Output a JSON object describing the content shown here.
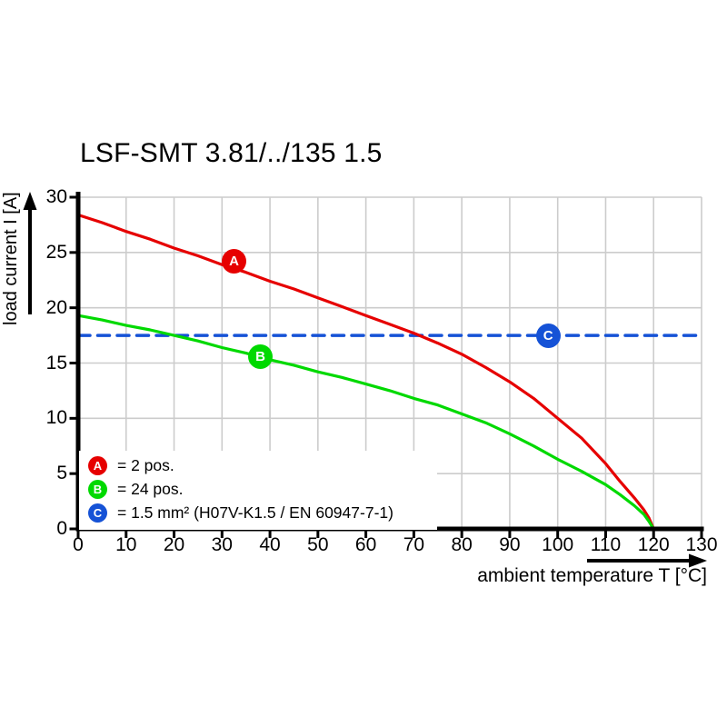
{
  "title": "LSF-SMT 3.81/../135 1.5",
  "axes": {
    "x_label": "ambient temperature T [°C]",
    "y_label": "load current I [A]",
    "x_ticks": [
      0,
      10,
      20,
      30,
      40,
      50,
      60,
      70,
      80,
      90,
      100,
      110,
      120,
      130
    ],
    "y_ticks": [
      0,
      5,
      10,
      15,
      20,
      25,
      30
    ]
  },
  "legend": {
    "items": [
      {
        "letter": "A",
        "color": "#e60000",
        "text": "= 2 pos."
      },
      {
        "letter": "B",
        "color": "#00d900",
        "text": "= 24 pos."
      },
      {
        "letter": "C",
        "color": "#1552d6",
        "text": "= 1.5 mm² (H07V-K1.5 / EN 60947-7-1)"
      }
    ]
  },
  "colors": {
    "curve_a_red": "#e60000",
    "curve_b_green": "#00d900",
    "limit_c_blue": "#1552d6",
    "grid": "#cccccc",
    "axis": "#000000",
    "background": "#ffffff"
  },
  "chart_data": {
    "type": "line",
    "title": "LSF-SMT 3.81/../135 1.5",
    "xlabel": "ambient temperature T [°C]",
    "ylabel": "load current I [A]",
    "xlim": [
      0,
      130
    ],
    "ylim": [
      0,
      30
    ],
    "x_tick_step": 10,
    "y_tick_step": 5,
    "grid": true,
    "legend_position": "bottom-left-inside",
    "series": [
      {
        "name": "A = 2 pos.",
        "color": "#e60000",
        "style": "solid",
        "points": [
          [
            0,
            28.4
          ],
          [
            5,
            27.7
          ],
          [
            10,
            26.9
          ],
          [
            15,
            26.2
          ],
          [
            20,
            25.4
          ],
          [
            25,
            24.7
          ],
          [
            30,
            23.9
          ],
          [
            35,
            23.2
          ],
          [
            40,
            22.4
          ],
          [
            45,
            21.7
          ],
          [
            50,
            20.9
          ],
          [
            55,
            20.1
          ],
          [
            60,
            19.3
          ],
          [
            65,
            18.5
          ],
          [
            70,
            17.7
          ],
          [
            75,
            16.8
          ],
          [
            80,
            15.8
          ],
          [
            85,
            14.6
          ],
          [
            90,
            13.3
          ],
          [
            95,
            11.8
          ],
          [
            100,
            10.0
          ],
          [
            105,
            8.2
          ],
          [
            110,
            5.9
          ],
          [
            113,
            4.3
          ],
          [
            116,
            2.8
          ],
          [
            118,
            1.7
          ],
          [
            119,
            1.0
          ],
          [
            120,
            0
          ]
        ]
      },
      {
        "name": "B = 24 pos.",
        "color": "#00d900",
        "style": "solid",
        "points": [
          [
            0,
            19.3
          ],
          [
            5,
            18.9
          ],
          [
            10,
            18.4
          ],
          [
            15,
            18.0
          ],
          [
            20,
            17.5
          ],
          [
            25,
            17.0
          ],
          [
            30,
            16.4
          ],
          [
            35,
            15.9
          ],
          [
            40,
            15.3
          ],
          [
            45,
            14.8
          ],
          [
            50,
            14.2
          ],
          [
            55,
            13.7
          ],
          [
            60,
            13.1
          ],
          [
            65,
            12.5
          ],
          [
            70,
            11.8
          ],
          [
            75,
            11.2
          ],
          [
            80,
            10.4
          ],
          [
            85,
            9.6
          ],
          [
            90,
            8.6
          ],
          [
            95,
            7.5
          ],
          [
            100,
            6.3
          ],
          [
            105,
            5.2
          ],
          [
            110,
            4.0
          ],
          [
            113,
            3.1
          ],
          [
            116,
            2.1
          ],
          [
            118,
            1.3
          ],
          [
            119,
            0.7
          ],
          [
            120,
            0
          ]
        ]
      },
      {
        "name": "C = 1.5 mm² (H07V-K1.5 / EN 60947-7-1)",
        "color": "#1552d6",
        "style": "dashed",
        "points": [
          [
            0,
            17.5
          ],
          [
            130,
            17.5
          ]
        ]
      }
    ],
    "markers": [
      {
        "label": "A",
        "x": 32.5,
        "y": 24.2,
        "color": "#e60000"
      },
      {
        "label": "B",
        "x": 38,
        "y": 15.6,
        "color": "#00d900"
      },
      {
        "label": "C",
        "x": 98,
        "y": 17.5,
        "color": "#1552d6"
      }
    ]
  }
}
